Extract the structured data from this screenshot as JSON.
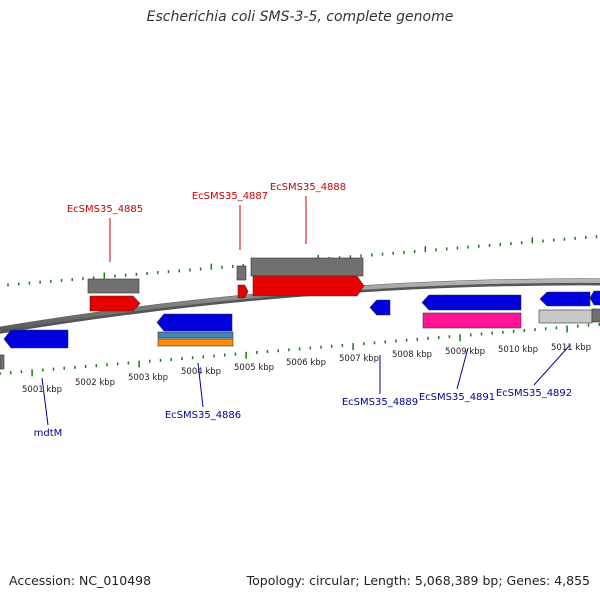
{
  "title": "Escherichia coli SMS-3-5, complete genome",
  "footer": {
    "accession": "Accession: NC_010498",
    "summary": "Topology: circular; Length: 5,068,389 bp; Genes: 4,855"
  },
  "kbp_labels": [
    "5001 kbp",
    "5002 kbp",
    "5003 kbp",
    "5004 kbp",
    "5005 kbp",
    "5006 kbp",
    "5007 kbp",
    "5008 kbp",
    "5009 kbp",
    "5010 kbp",
    "5011 kbp"
  ],
  "gene_labels": {
    "top": [
      "EcSMS35_4885",
      "EcSMS35_4887",
      "EcSMS35_4888"
    ],
    "bottom": [
      "mdtM",
      "EcSMS35_4886",
      "EcSMS35_4889",
      "EcSMS35_4891",
      "EcSMS35_4892"
    ]
  },
  "colors": {
    "top_label": "#cc0000",
    "bottom_label": "#000099",
    "tick": "#1a7a1a",
    "backbone": "#888888",
    "forward_gene": "#e60000",
    "reverse_gene": "#0000dd",
    "gray_feature": "#707070",
    "light_gray_feature": "#c8c8c8",
    "magenta_feature": "#ff1493",
    "steel_feature": "#4682b4",
    "orange_feature": "#ff8c00"
  }
}
